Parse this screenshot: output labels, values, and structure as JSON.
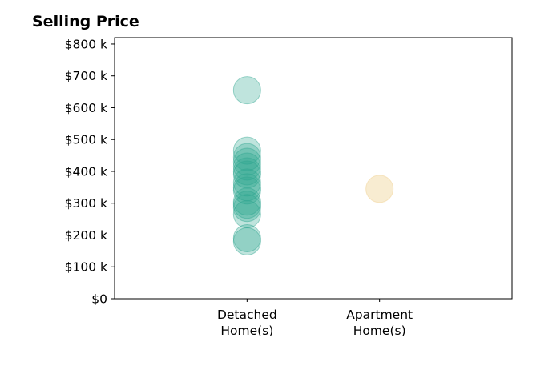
{
  "chart_data": {
    "type": "scatter",
    "title": "Selling Price",
    "xlabel": "",
    "ylabel": "",
    "categories": [
      "Detached\nHome(s)",
      "Apartment\nHome(s)"
    ],
    "xlim": [
      0,
      3
    ],
    "ylim": [
      0,
      820000
    ],
    "yticks": [
      0,
      100000,
      200000,
      300000,
      400000,
      500000,
      600000,
      700000,
      800000
    ],
    "ytick_labels": [
      "$0",
      "$100 k",
      "$200 k",
      "$300 k",
      "$400 k",
      "$500 k",
      "$600 k",
      "$700 k",
      "$800 k"
    ],
    "grid": false,
    "series": [
      {
        "category": "Detached\nHome(s)",
        "color": "#2ca58d",
        "opacity": 0.3,
        "values": [
          655000,
          465000,
          445000,
          430000,
          415000,
          400000,
          390000,
          365000,
          350000,
          340000,
          305000,
          295000,
          285000,
          265000,
          190000,
          180000
        ]
      },
      {
        "category": "Apartment\nHome(s)",
        "color": "#f2d9a4",
        "opacity": 0.5,
        "values": [
          345000
        ]
      }
    ]
  }
}
